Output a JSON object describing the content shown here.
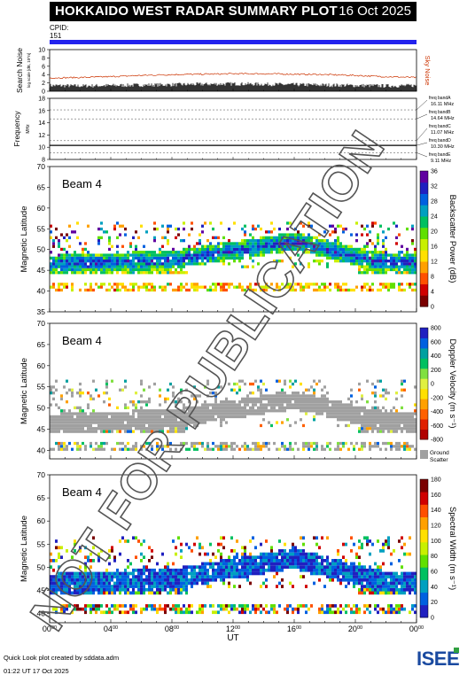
{
  "header": {
    "title": "HOKKAIDO WEST RADAR SUMMARY PLOT",
    "date": "16 Oct 2025",
    "cpid_label": "CPID:",
    "cpid_value": "151"
  },
  "watermark": "NOT FOR PUBLICATION",
  "footer": {
    "credit": "Quick Look plot created by sddata.adm",
    "created": "01:22 UT 17 Oct 2025"
  },
  "logo": "ISEE",
  "colors": {
    "cpid_bar": "#2222ee",
    "noise_search": "#000000",
    "noise_sky": "#cc3300",
    "ground_scatter": "#a0a0a0"
  },
  "chart_data": [
    {
      "type": "line",
      "name": "noise-panel",
      "ylabel": "Search Noise",
      "ylabel_sub": "log scale [dB, 10^n]",
      "right_label": "Sky Noise",
      "yticks": [
        "0",
        "2",
        "4",
        "6",
        "8",
        "10"
      ],
      "ylim": [
        0,
        10
      ],
      "series": [
        {
          "name": "Search Noise",
          "x_hours": [
            0,
            2,
            4,
            6,
            8,
            10,
            12,
            14,
            16,
            18,
            20,
            22,
            24
          ],
          "values": [
            1.2,
            1.1,
            1.2,
            1.3,
            1.4,
            1.5,
            1.6,
            1.5,
            1.4,
            1.3,
            1.2,
            1.1,
            1.2
          ]
        },
        {
          "name": "Sky Noise",
          "x_hours": [
            0,
            2,
            4,
            6,
            8,
            10,
            12,
            14,
            16,
            18,
            20,
            22,
            24
          ],
          "values": [
            3.2,
            3.3,
            3.5,
            3.8,
            4.0,
            4.1,
            4.2,
            4.2,
            4.1,
            4.0,
            3.8,
            3.5,
            3.3
          ]
        }
      ]
    },
    {
      "type": "line",
      "name": "frequency-panel",
      "ylabel": "Frequency",
      "ylabel_sub": "MHz",
      "yticks": [
        "8",
        "10",
        "12",
        "14",
        "16",
        "18"
      ],
      "ylim": [
        8,
        18
      ],
      "freq_bands": [
        {
          "label": "freq bandA",
          "value": "16.11 MHz"
        },
        {
          "label": "freq bandB",
          "value": "14.64 MHz"
        },
        {
          "label": "freq bandC",
          "value": "11.07 MHz"
        },
        {
          "label": "freq bandD",
          "value": "10.30 MHz"
        },
        {
          "label": "freq bandE",
          "value": "9.11 MHz"
        }
      ],
      "operating_frequency_mhz": 10.3
    },
    {
      "type": "heatmap",
      "name": "power-panel",
      "beam_label": "Beam  4",
      "ylabel": "Magnetic Latitude",
      "yticks": [
        "35",
        "40",
        "45",
        "50",
        "55",
        "60",
        "65",
        "70"
      ],
      "ylim": [
        35,
        70
      ],
      "colorbar_label": "Backscatter Power (dB)",
      "colorbar_ticks": [
        "0",
        "4",
        "8",
        "12",
        "16",
        "20",
        "24",
        "28",
        "32",
        "36"
      ],
      "colorbar_range": [
        0,
        36
      ],
      "colorbar_colors": [
        "#7a0000",
        "#d00000",
        "#ff5000",
        "#ffa000",
        "#ffe000",
        "#c8f000",
        "#60e000",
        "#00c060",
        "#00a0c0",
        "#0060e0",
        "#2020c0",
        "#6000a0"
      ]
    },
    {
      "type": "heatmap",
      "name": "velocity-panel",
      "beam_label": "Beam  4",
      "ylabel": "Magnetic Latitude",
      "yticks": [
        "40",
        "45",
        "50",
        "55",
        "60",
        "65",
        "70"
      ],
      "ylim": [
        38,
        70
      ],
      "colorbar_label": "Doppler Velocity (m s⁻¹)",
      "colorbar_ticks": [
        "-800",
        "-600",
        "-400",
        "-200",
        "0",
        "200",
        "400",
        "600",
        "800"
      ],
      "colorbar_range": [
        -800,
        800
      ],
      "colorbar_colors": [
        "#b00000",
        "#e02000",
        "#ff6000",
        "#ffa000",
        "#ffe000",
        "#e0f040",
        "#80e040",
        "#00c060",
        "#00a0a0",
        "#0060e0",
        "#2020c0"
      ],
      "ground_scatter_label": "Ground Scatter"
    },
    {
      "type": "heatmap",
      "name": "width-panel",
      "beam_label": "Beam  4",
      "ylabel": "Magnetic Latitude",
      "yticks": [
        "40",
        "45",
        "50",
        "55",
        "60",
        "65",
        "70"
      ],
      "ylim": [
        38,
        70
      ],
      "colorbar_label": "Spectral Width (m s⁻¹)",
      "colorbar_ticks": [
        "0",
        "20",
        "40",
        "60",
        "80",
        "100",
        "120",
        "140",
        "160",
        "180"
      ],
      "colorbar_range": [
        0,
        180
      ],
      "colorbar_colors": [
        "#2020c0",
        "#0060e0",
        "#00a0c0",
        "#00c060",
        "#60e000",
        "#c8f000",
        "#ffe000",
        "#ffa000",
        "#ff5000",
        "#d00000",
        "#7a0000"
      ]
    }
  ],
  "x_axis": {
    "label": "UT",
    "ticks": [
      {
        "h": "00",
        "m": "00"
      },
      {
        "h": "04",
        "m": "00"
      },
      {
        "h": "08",
        "m": "00"
      },
      {
        "h": "12",
        "m": "00"
      },
      {
        "h": "16",
        "m": "00"
      },
      {
        "h": "20",
        "m": "00"
      },
      {
        "h": "00",
        "m": "00"
      }
    ],
    "range_hours": [
      0,
      24
    ]
  }
}
